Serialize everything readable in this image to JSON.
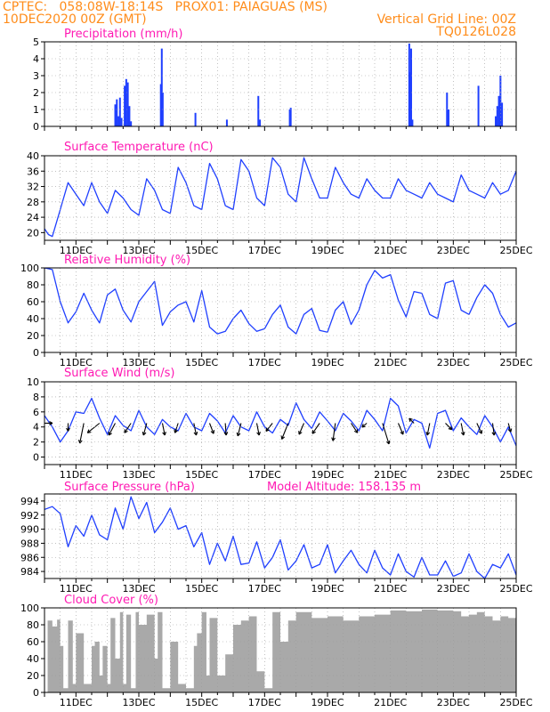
{
  "header": {
    "line1_left": "CPTEC:   058:08W-18:14S   PROX01: PAIAGUAS (MS)",
    "line2_left": "10DEC2020 00Z (GMT)",
    "line1_right": "Vertical Grid Line: 00Z",
    "line2_right": "TQ0126L028"
  },
  "colors": {
    "header": "#ff8c1a",
    "title": "#ff1ab3",
    "series": "#1f3fff",
    "cloud": "#a9a9a9",
    "grid": "#9a9a9a",
    "axis": "#000000"
  },
  "x_axis": {
    "range": [
      0,
      15
    ],
    "tick_days": [
      1,
      3,
      5,
      7,
      9,
      11,
      13,
      15
    ],
    "tick_labels": [
      "11DEC",
      "13DEC",
      "15DEC",
      "17DEC",
      "19DEC",
      "21DEC",
      "23DEC",
      "25DEC"
    ]
  },
  "chart_data": [
    {
      "type": "bar",
      "title": "Precipitation (mm/h)",
      "ylim": [
        0,
        5
      ],
      "yticks": [
        0,
        1,
        2,
        3,
        4,
        5
      ],
      "x": [
        2.25,
        2.3,
        2.35,
        2.4,
        2.45,
        2.55,
        2.6,
        2.65,
        2.7,
        2.75,
        3.7,
        3.73,
        3.76,
        4.8,
        5.8,
        6.8,
        6.85,
        7.8,
        7.83,
        11.6,
        11.63,
        11.66,
        11.7,
        12.8,
        12.85,
        13.8,
        14.35,
        14.4,
        14.45,
        14.5,
        14.55
      ],
      "values": [
        1.3,
        1.6,
        0.6,
        1.7,
        0.5,
        2.4,
        2.8,
        2.6,
        1.2,
        0.3,
        2.5,
        4.6,
        2.0,
        0.8,
        0.4,
        1.8,
        0.4,
        1.0,
        1.1,
        4.9,
        3.2,
        4.6,
        0.4,
        2.0,
        1.0,
        2.4,
        0.6,
        1.2,
        1.8,
        3.0,
        1.4
      ]
    },
    {
      "type": "line",
      "title": "Surface Temperature (nC)",
      "ylim": [
        18,
        40
      ],
      "yticks": [
        20,
        24,
        28,
        32,
        36,
        40
      ],
      "x": [
        0,
        0.125,
        0.25,
        0.5,
        0.75,
        1.0,
        1.25,
        1.5,
        1.75,
        2.0,
        2.25,
        2.5,
        2.75,
        3.0,
        3.25,
        3.5,
        3.75,
        4.0,
        4.25,
        4.5,
        4.75,
        5.0,
        5.25,
        5.5,
        5.75,
        6.0,
        6.25,
        6.5,
        6.75,
        7.0,
        7.25,
        7.5,
        7.75,
        8.0,
        8.25,
        8.5,
        8.75,
        9.0,
        9.25,
        9.5,
        9.75,
        10.0,
        10.25,
        10.5,
        10.75,
        11.0,
        11.25,
        11.5,
        11.75,
        12.0,
        12.25,
        12.5,
        12.75,
        13.0,
        13.25,
        13.5,
        13.75,
        14.0,
        14.25,
        14.5,
        14.75,
        15.0
      ],
      "values": [
        21,
        19.5,
        19,
        26,
        33,
        30,
        27,
        33,
        28,
        25,
        31,
        29,
        26,
        24.5,
        34,
        31,
        26,
        25,
        37,
        33,
        27,
        26,
        38,
        34,
        27,
        26,
        39,
        36,
        29,
        27,
        39.5,
        37,
        30,
        28,
        39.5,
        34,
        29,
        29,
        37,
        33,
        30,
        29,
        34,
        31,
        29,
        29,
        34,
        31,
        30,
        29,
        33,
        30,
        29,
        28,
        35,
        31,
        30,
        29,
        33,
        30,
        31,
        36
      ]
    },
    {
      "type": "line",
      "title": "Relative Humidity (%)",
      "ylim": [
        0,
        100
      ],
      "yticks": [
        0,
        20,
        40,
        60,
        80,
        100
      ],
      "x": [
        0,
        0.25,
        0.5,
        0.75,
        1.0,
        1.25,
        1.5,
        1.75,
        2.0,
        2.25,
        2.5,
        2.75,
        3.0,
        3.25,
        3.5,
        3.75,
        4.0,
        4.25,
        4.5,
        4.75,
        5.0,
        5.25,
        5.5,
        5.75,
        6.0,
        6.25,
        6.5,
        6.75,
        7.0,
        7.25,
        7.5,
        7.75,
        8.0,
        8.25,
        8.5,
        8.75,
        9.0,
        9.25,
        9.5,
        9.75,
        10.0,
        10.25,
        10.5,
        10.75,
        11.0,
        11.25,
        11.5,
        11.75,
        12.0,
        12.25,
        12.5,
        12.75,
        13.0,
        13.25,
        13.5,
        13.75,
        14.0,
        14.25,
        14.5,
        14.75,
        15.0
      ],
      "values": [
        100,
        98,
        60,
        35,
        48,
        70,
        50,
        35,
        68,
        75,
        50,
        36,
        60,
        72,
        84,
        32,
        48,
        56,
        60,
        36,
        73,
        30,
        22,
        25,
        40,
        50,
        34,
        25,
        28,
        45,
        56,
        30,
        22,
        45,
        52,
        26,
        24,
        50,
        60,
        33,
        50,
        80,
        97,
        88,
        92,
        62,
        42,
        72,
        70,
        45,
        40,
        82,
        85,
        50,
        45,
        65,
        80,
        70,
        45,
        30,
        35
      ]
    },
    {
      "type": "line",
      "title": "Surface Wind (m/s)",
      "ylim": [
        -1,
        10
      ],
      "yticks": [
        0,
        2,
        4,
        6,
        8,
        10
      ],
      "x": [
        0,
        0.25,
        0.5,
        0.75,
        1.0,
        1.25,
        1.5,
        1.75,
        2.0,
        2.25,
        2.5,
        2.75,
        3.0,
        3.25,
        3.5,
        3.75,
        4.0,
        4.25,
        4.5,
        4.75,
        5.0,
        5.25,
        5.5,
        5.75,
        6.0,
        6.25,
        6.5,
        6.75,
        7.0,
        7.25,
        7.5,
        7.75,
        8.0,
        8.25,
        8.5,
        8.75,
        9.0,
        9.25,
        9.5,
        9.75,
        10.0,
        10.25,
        10.5,
        10.75,
        11.0,
        11.25,
        11.5,
        11.75,
        12.0,
        12.25,
        12.5,
        12.75,
        13.0,
        13.25,
        13.5,
        13.75,
        14.0,
        14.25,
        14.5,
        14.75,
        15.0
      ],
      "values": [
        5.5,
        4.0,
        2.0,
        3.5,
        6.0,
        5.8,
        7.8,
        5.2,
        3.0,
        5.5,
        4.2,
        3.5,
        6.2,
        4.0,
        3.0,
        5.0,
        4.0,
        3.5,
        5.8,
        4.0,
        3.5,
        5.8,
        4.8,
        3.2,
        5.5,
        4.0,
        3.5,
        6.0,
        4.0,
        3.2,
        5.0,
        4.2,
        7.2,
        5.0,
        3.8,
        6.0,
        4.8,
        3.5,
        5.8,
        4.8,
        3.5,
        6.2,
        5.0,
        3.5,
        7.8,
        6.8,
        3.2,
        5.0,
        4.5,
        1.2,
        5.8,
        6.2,
        3.5,
        5.2,
        4.0,
        3.0,
        5.5,
        4.0,
        2.0,
        4.0,
        1.5
      ],
      "arrows": {
        "x": [
          0.0,
          0.75,
          1.25,
          1.75,
          2.25,
          2.75,
          3.25,
          3.75,
          4.25,
          4.75,
          5.25,
          5.75,
          6.25,
          6.75,
          7.25,
          7.75,
          8.25,
          8.75,
          9.25,
          9.75,
          10.25,
          10.75,
          11.25,
          11.75,
          12.25,
          12.75,
          13.25,
          13.75,
          14.25,
          14.75
        ],
        "u": [
          1.0,
          0.0,
          -0.5,
          -1.5,
          -0.8,
          -0.8,
          -0.4,
          0.3,
          -0.4,
          0.3,
          0.5,
          0.1,
          -0.4,
          0.3,
          -0.8,
          -0.8,
          -0.6,
          -0.9,
          -0.3,
          0.8,
          -0.6,
          0.8,
          0.6,
          -0.6,
          -0.3,
          0.8,
          0.3,
          0.6,
          0.2,
          0.3
        ],
        "v": [
          0.0,
          -1.0,
          -2.5,
          -1.2,
          -1.5,
          -1.2,
          -1.5,
          -1.5,
          -1.2,
          -1.5,
          -1.3,
          -1.5,
          -1.6,
          -1.5,
          -1.0,
          -2.0,
          -1.4,
          -1.3,
          -2.2,
          -1.2,
          -0.5,
          -2.6,
          -1.4,
          0.6,
          -1.5,
          -0.8,
          -1.5,
          -1.3,
          -1.5,
          -1.1
        ]
      }
    },
    {
      "type": "line",
      "title": "Surface Pressure (hPa)",
      "annotation": "Model Altitude: 158.135 m",
      "ylim": [
        983,
        995
      ],
      "yticks": [
        984,
        986,
        988,
        990,
        992,
        994
      ],
      "x": [
        0,
        0.25,
        0.5,
        0.75,
        1.0,
        1.25,
        1.5,
        1.75,
        2.0,
        2.25,
        2.5,
        2.75,
        3.0,
        3.25,
        3.5,
        3.75,
        4.0,
        4.25,
        4.5,
        4.75,
        5.0,
        5.25,
        5.5,
        5.75,
        6.0,
        6.25,
        6.5,
        6.75,
        7.0,
        7.25,
        7.5,
        7.75,
        8.0,
        8.25,
        8.5,
        8.75,
        9.0,
        9.25,
        9.5,
        9.75,
        10.0,
        10.25,
        10.5,
        10.75,
        11.0,
        11.25,
        11.5,
        11.75,
        12.0,
        12.25,
        12.5,
        12.75,
        13.0,
        13.25,
        13.5,
        13.75,
        14.0,
        14.25,
        14.5,
        14.75,
        15.0
      ],
      "values": [
        992.8,
        993.2,
        992.2,
        987.5,
        990.5,
        989.0,
        992.0,
        989.2,
        988.5,
        993.0,
        990.0,
        994.6,
        991.5,
        993.8,
        989.5,
        991.0,
        993.0,
        990.0,
        990.5,
        987.5,
        989.5,
        985.0,
        988.0,
        985.5,
        989.0,
        985.0,
        985.2,
        988.2,
        984.5,
        986.0,
        988.5,
        984.2,
        985.5,
        987.8,
        984.5,
        985.0,
        987.8,
        983.8,
        985.5,
        987.0,
        985.0,
        983.8,
        987.0,
        984.5,
        983.5,
        986.5,
        984.0,
        983.2,
        986.0,
        983.5,
        983.5,
        985.5,
        983.3,
        983.8,
        986.5,
        984.0,
        983.0,
        985.0,
        984.5,
        986.5,
        983.5
      ]
    },
    {
      "type": "area",
      "title": "Cloud Cover (%)",
      "ylim": [
        0,
        100
      ],
      "yticks": [
        0,
        20,
        40,
        60,
        80,
        100
      ],
      "x": [
        0,
        0.1,
        0.25,
        0.4,
        0.5,
        0.6,
        0.75,
        0.9,
        1.0,
        1.25,
        1.5,
        1.6,
        1.75,
        1.85,
        2.0,
        2.1,
        2.25,
        2.4,
        2.5,
        2.6,
        2.75,
        2.9,
        3.0,
        3.25,
        3.5,
        3.6,
        3.75,
        4.0,
        4.25,
        4.5,
        4.75,
        4.85,
        5.0,
        5.15,
        5.25,
        5.5,
        5.75,
        6.0,
        6.25,
        6.5,
        6.75,
        7.0,
        7.25,
        7.5,
        7.75,
        8.0,
        8.5,
        9.0,
        9.5,
        10.0,
        10.5,
        11.0,
        11.5,
        12.0,
        12.5,
        13.0,
        13.25,
        13.5,
        13.75,
        14.0,
        14.25,
        14.5,
        14.75,
        15.0
      ],
      "values": [
        0,
        85,
        78,
        86,
        55,
        5,
        85,
        10,
        70,
        10,
        55,
        60,
        20,
        55,
        10,
        88,
        40,
        95,
        10,
        92,
        5,
        95,
        80,
        92,
        40,
        95,
        5,
        60,
        10,
        5,
        55,
        70,
        95,
        20,
        88,
        20,
        45,
        80,
        85,
        90,
        25,
        5,
        95,
        60,
        85,
        95,
        88,
        90,
        85,
        90,
        92,
        97,
        96,
        98,
        97,
        96,
        90,
        92,
        95,
        90,
        85,
        90,
        88,
        90
      ]
    }
  ]
}
